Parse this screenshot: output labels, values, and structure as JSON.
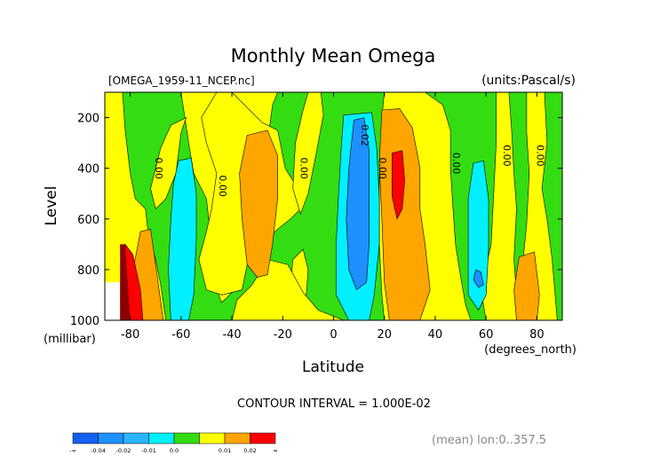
{
  "chart_data": {
    "type": "heatmap",
    "title": "Monthly Mean Omega",
    "file_label": "[OMEGA_1959-11_NCEP.nc]",
    "units_label": "(units:Pascal/s)",
    "xlabel": "Latitude",
    "x_unit_label": "(degrees_north)",
    "ylabel": "Level",
    "y_unit_label": "(millibar)",
    "xlim": [
      -90,
      90
    ],
    "ylim": [
      1000,
      100
    ],
    "x_ticks": [
      -80,
      -60,
      -40,
      -20,
      0,
      20,
      40,
      60,
      80
    ],
    "y_ticks": [
      200,
      400,
      600,
      800,
      1000
    ],
    "contour_interval_text": "CONTOUR INTERVAL = 1.000E-02",
    "subtitle_right": "(mean) lon:0..357.5",
    "contour_labels": [
      {
        "text": "0.00",
        "lat": -70,
        "level": 400
      },
      {
        "text": "0.00",
        "lat": -45,
        "level": 470
      },
      {
        "text": "0.00",
        "lat": -13,
        "level": 400
      },
      {
        "text": "0.02",
        "lat": 11,
        "level": 270
      },
      {
        "text": "0.00",
        "lat": 18,
        "level": 400
      },
      {
        "text": "0.00",
        "lat": 47,
        "level": 380
      },
      {
        "text": "0.00",
        "lat": 67,
        "level": 350
      },
      {
        "text": "0.00",
        "lat": 80,
        "level": 350
      }
    ],
    "legend": {
      "bins": [
        {
          "label": "-∞",
          "color": "#1560f0"
        },
        {
          "label": "-0.04",
          "color": "#1e90ff"
        },
        {
          "label": "-0.02",
          "color": "#2ab6ff"
        },
        {
          "label": "-0.01",
          "color": "#00f0ff"
        },
        {
          "label": "0.0",
          "color": "#33dd11"
        },
        {
          "label": "",
          "color": "#ffff00"
        },
        {
          "label": "0.01",
          "color": "#ffa500"
        },
        {
          "label": "0.02",
          "color": "#ff0000"
        }
      ],
      "end_label": "∞"
    },
    "colors": {
      "strong_negative": "#1e90ff",
      "negative": "#00f0ff",
      "weak_negative": "#33dd11",
      "weak_positive": "#ffff00",
      "positive": "#ffa500",
      "strong_positive": "#ff0000",
      "below_ground": "#8b0000"
    }
  }
}
